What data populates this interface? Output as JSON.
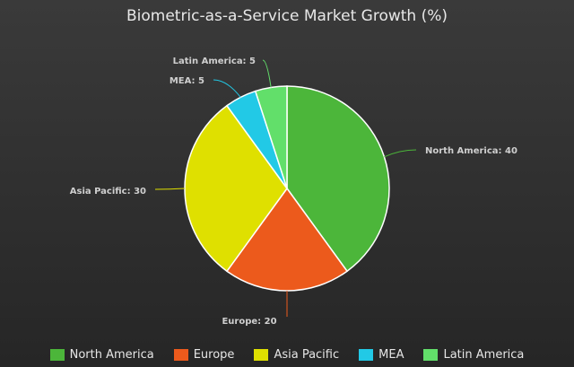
{
  "chart_data": {
    "type": "pie",
    "title": "Biometric-as-a-Service Market Growth (%)",
    "categories": [
      "North America",
      "Europe",
      "Asia Pacific",
      "MEA",
      "Latin America"
    ],
    "values": [
      40,
      20,
      30,
      5,
      5
    ],
    "colors": [
      "#4cb63a",
      "#ec5a1c",
      "#dfe000",
      "#22c9e6",
      "#62df6a"
    ],
    "data_labels": [
      "North America: 40",
      "Europe: 20",
      "Asia Pacific: 30",
      "MEA: 5",
      "Latin America: 5"
    ],
    "legend_position": "bottom"
  }
}
